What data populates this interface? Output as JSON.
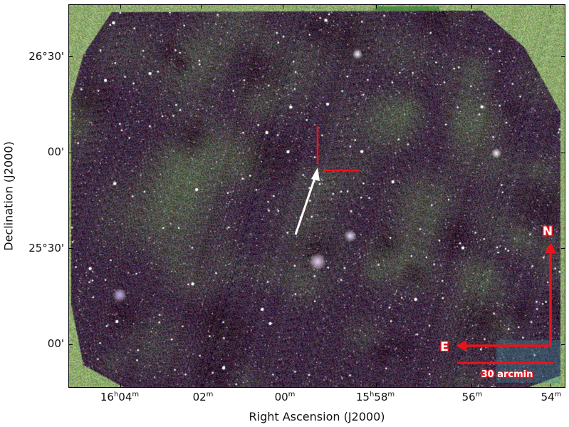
{
  "axes": {
    "xlabel": "Right Ascension (J2000)",
    "ylabel": "Declination (J2000)",
    "x_ticks": [
      {
        "h": "16",
        "hsup": "h",
        "m": "04",
        "msup": "m"
      },
      {
        "h": "",
        "hsup": "",
        "m": "02",
        "msup": "m"
      },
      {
        "h": "",
        "hsup": "",
        "m": "00",
        "msup": "m"
      },
      {
        "h": "15",
        "hsup": "h",
        "m": "58",
        "msup": "m"
      },
      {
        "h": "",
        "hsup": "",
        "m": "56",
        "msup": "m"
      },
      {
        "h": "",
        "hsup": "",
        "m": "54",
        "msup": "m"
      }
    ],
    "y_ticks": [
      "26°30'",
      "00'",
      "25°30'",
      "00'"
    ]
  },
  "annotations": {
    "north_label": "N",
    "east_label": "E",
    "scale_label": "30 arcmin"
  },
  "colors": {
    "background": "#8faa6e",
    "marker": "#e8141c",
    "arrow": "#ffffff"
  }
}
